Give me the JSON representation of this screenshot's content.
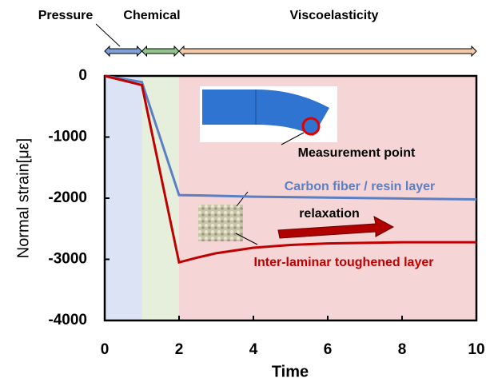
{
  "chart_data": {
    "type": "line",
    "x_label": "Time",
    "y_label": "Normal strain[με]",
    "xlim": [
      0,
      10
    ],
    "ylim": [
      -4000,
      0
    ],
    "xticks": [
      0,
      2,
      4,
      6,
      8,
      10
    ],
    "yticks": [
      0,
      -1000,
      -2000,
      -3000,
      -4000
    ],
    "phases": [
      {
        "label": "Pressure",
        "range": [
          0,
          1
        ],
        "color": "#dce3f4",
        "arrow_color": "#7ea0d6"
      },
      {
        "label": "Chemical",
        "range": [
          1,
          2
        ],
        "color": "#e6efdc",
        "arrow_color": "#8fc389"
      },
      {
        "label": "Viscoelasticity",
        "range": [
          2,
          10
        ],
        "color": "#f5d5d5",
        "arrow_color": "#f3c9a8"
      }
    ],
    "series": [
      {
        "name": "Carbon fiber / resin layer",
        "color": "#5b7fc4",
        "x": [
          0,
          1,
          2,
          3,
          4,
          6,
          8,
          10
        ],
        "values": [
          0,
          -100,
          -1950,
          -1960,
          -1975,
          -1990,
          -2005,
          -2020
        ]
      },
      {
        "name": "Inter-laminar toughened layer",
        "color": "#c00000",
        "x": [
          0,
          1,
          2,
          2.5,
          3,
          4,
          5,
          6,
          8,
          10
        ],
        "values": [
          0,
          -150,
          -3050,
          -2970,
          -2900,
          -2810,
          -2765,
          -2740,
          -2720,
          -2720
        ]
      }
    ],
    "annotations": [
      "Measurement point",
      "relaxation"
    ]
  }
}
